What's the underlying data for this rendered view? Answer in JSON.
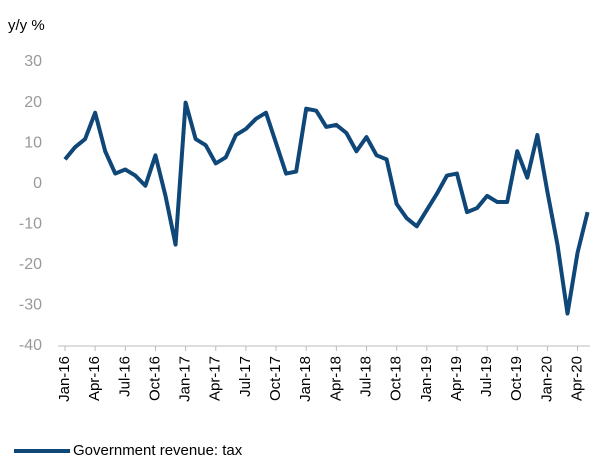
{
  "chart_data": {
    "type": "line",
    "y_label": "y/y %",
    "categories": [
      "Jan-16",
      null,
      null,
      "Apr-16",
      null,
      null,
      "Jul-16",
      null,
      null,
      "Oct-16",
      null,
      null,
      "Jan-17",
      null,
      null,
      "Apr-17",
      null,
      null,
      "Jul-17",
      null,
      null,
      "Oct-17",
      null,
      null,
      "Jan-18",
      null,
      null,
      "Apr-18",
      null,
      null,
      "Jul-18",
      null,
      null,
      "Oct-18",
      null,
      null,
      "Jan-19",
      null,
      null,
      "Apr-19",
      null,
      null,
      "Jul-19",
      null,
      null,
      "Oct-19",
      null,
      null,
      "Jan-20",
      null,
      null,
      "Apr-20",
      null
    ],
    "series": [
      {
        "name": "Government revenue: tax",
        "color": "#0f4778",
        "values": [
          6,
          9,
          11,
          17.5,
          8,
          2.5,
          3.5,
          2,
          -0.5,
          7,
          -3,
          -15,
          20,
          11,
          9.5,
          5,
          6.5,
          12,
          13.5,
          16,
          17.5,
          10,
          2.5,
          3,
          18.5,
          18,
          14,
          14.5,
          12.5,
          8,
          11.5,
          7,
          6,
          -5,
          -8.5,
          -10.5,
          -6.5,
          -2.5,
          2,
          2.5,
          -7,
          -6,
          -3,
          -4.5,
          -4.5,
          8,
          1.5,
          12,
          -2,
          -15,
          -32,
          -17,
          -7
        ]
      }
    ],
    "ylim": [
      -40,
      30
    ],
    "yticks": [
      -40,
      -30,
      -20,
      -10,
      0,
      10,
      20,
      30
    ],
    "grid": false
  }
}
